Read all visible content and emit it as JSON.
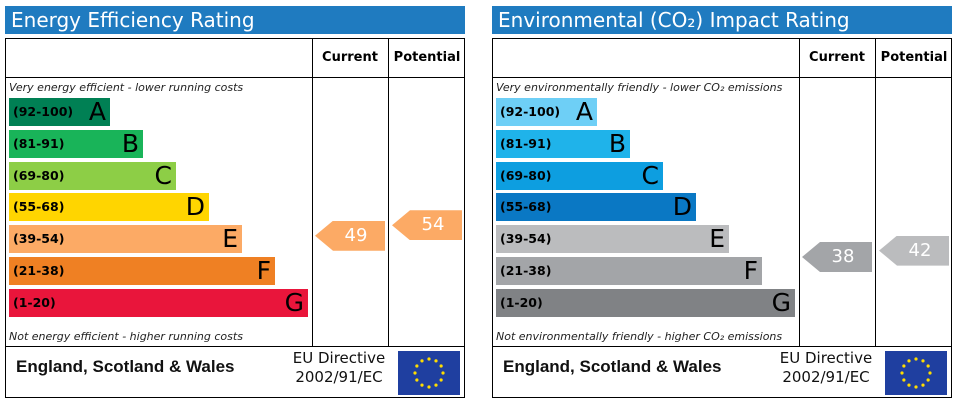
{
  "chart_data": [
    {
      "type": "bar",
      "title": "Energy Efficiency Rating",
      "columns": [
        "Current",
        "Potential"
      ],
      "top_caption": "Very energy efficient - lower running costs",
      "bottom_caption": "Not energy efficient - higher running costs",
      "bands": [
        {
          "range": "(92-100)",
          "letter": "A",
          "color": "#008054"
        },
        {
          "range": "(81-91)",
          "letter": "B",
          "color": "#19b459"
        },
        {
          "range": "(69-80)",
          "letter": "C",
          "color": "#8dce46"
        },
        {
          "range": "(55-68)",
          "letter": "D",
          "color": "#ffd500"
        },
        {
          "range": "(39-54)",
          "letter": "E",
          "color": "#fcaa65"
        },
        {
          "range": "(21-38)",
          "letter": "F",
          "color": "#ef8023"
        },
        {
          "range": "(1-20)",
          "letter": "G",
          "color": "#e9153b"
        }
      ],
      "current": {
        "value": 49,
        "band": "E",
        "color": "#fcaa65"
      },
      "potential": {
        "value": 54,
        "band": "E",
        "color": "#fcaa65"
      },
      "footer": "England, Scotland & Wales",
      "directive": [
        "EU Directive",
        "2002/91/EC"
      ]
    },
    {
      "type": "bar",
      "title": "Environmental (CO₂) Impact Rating",
      "columns": [
        "Current",
        "Potential"
      ],
      "top_caption": "Very environmentally friendly - lower CO₂ emissions",
      "bottom_caption": "Not environmentally friendly - higher CO₂ emissions",
      "bands": [
        {
          "range": "(92-100)",
          "letter": "A",
          "color": "#6ecff6"
        },
        {
          "range": "(81-91)",
          "letter": "B",
          "color": "#1fb3ea"
        },
        {
          "range": "(69-80)",
          "letter": "C",
          "color": "#0d9ee0"
        },
        {
          "range": "(55-68)",
          "letter": "D",
          "color": "#0a78c4"
        },
        {
          "range": "(39-54)",
          "letter": "E",
          "color": "#bbbcbe"
        },
        {
          "range": "(21-38)",
          "letter": "F",
          "color": "#a3a5a8"
        },
        {
          "range": "(1-20)",
          "letter": "G",
          "color": "#808285"
        }
      ],
      "current": {
        "value": 38,
        "band": "F",
        "color": "#a3a5a8"
      },
      "potential": {
        "value": 42,
        "band": "E",
        "color": "#bbbcbe"
      },
      "footer": "England, Scotland & Wales",
      "directive": [
        "EU Directive",
        "2002/91/EC"
      ]
    }
  ]
}
